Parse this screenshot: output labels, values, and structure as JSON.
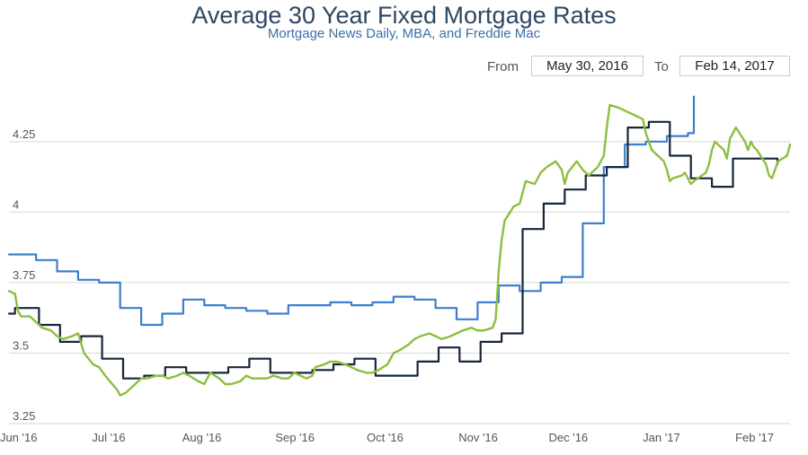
{
  "title": "Average 30 Year Fixed Mortgage Rates",
  "subtitle": "Mortgage News Daily, MBA, and Freddie Mac",
  "range_selector": {
    "from_label": "From",
    "from_value": "May 30, 2016",
    "to_label": "To",
    "to_value": "Feb 14, 2017"
  },
  "colors": {
    "mortgage_news_daily": "#8cbf3f",
    "mba": "#3d7fcc",
    "freddie_mac": "#16263a",
    "grid": "#d8d8d8",
    "title": "#2e4663",
    "subtitle": "#3d6fa8"
  },
  "chart_data": {
    "type": "line",
    "title": "Average 30 Year Fixed Mortgage Rates",
    "subtitle": "Mortgage News Daily, MBA, and Freddie Mac",
    "xlabel": "",
    "ylabel": "",
    "ylim": [
      3.25,
      4.45
    ],
    "xlim": [
      "2016-05-30",
      "2017-02-14"
    ],
    "y_ticks": [
      {
        "value": 3.25,
        "label": "3.25"
      },
      {
        "value": 3.5,
        "label": "3.5"
      },
      {
        "value": 3.75,
        "label": "3.75"
      },
      {
        "value": 4,
        "label": "4"
      },
      {
        "value": 4.25,
        "label": "4.25"
      }
    ],
    "x_ticks": [
      {
        "date": "2016-06-01",
        "label": "Jun '16"
      },
      {
        "date": "2016-07-01",
        "label": "Jul '16"
      },
      {
        "date": "2016-08-01",
        "label": "Aug '16"
      },
      {
        "date": "2016-09-01",
        "label": "Sep '16"
      },
      {
        "date": "2016-10-01",
        "label": "Oct '16"
      },
      {
        "date": "2016-11-01",
        "label": "Nov '16"
      },
      {
        "date": "2016-12-01",
        "label": "Dec '16"
      },
      {
        "date": "2017-01-01",
        "label": "Jan '17"
      },
      {
        "date": "2017-02-01",
        "label": "Feb '17"
      }
    ],
    "grid": true,
    "legend": "none",
    "series": [
      {
        "step": true,
        "color": "#3d7fcc",
        "points": [
          [
            "2016-05-30",
            3.85
          ],
          [
            "2016-06-08",
            3.83
          ],
          [
            "2016-06-15",
            3.79
          ],
          [
            "2016-06-22",
            3.76
          ],
          [
            "2016-06-29",
            3.75
          ],
          [
            "2016-07-06",
            3.66
          ],
          [
            "2016-07-13",
            3.6
          ],
          [
            "2016-07-20",
            3.64
          ],
          [
            "2016-07-27",
            3.69
          ],
          [
            "2016-08-03",
            3.67
          ],
          [
            "2016-08-10",
            3.66
          ],
          [
            "2016-08-17",
            3.65
          ],
          [
            "2016-08-24",
            3.64
          ],
          [
            "2016-08-31",
            3.67
          ],
          [
            "2016-09-07",
            3.67
          ],
          [
            "2016-09-14",
            3.68
          ],
          [
            "2016-09-21",
            3.67
          ],
          [
            "2016-09-28",
            3.68
          ],
          [
            "2016-10-05",
            3.7
          ],
          [
            "2016-10-12",
            3.69
          ],
          [
            "2016-10-19",
            3.66
          ],
          [
            "2016-10-26",
            3.62
          ],
          [
            "2016-11-02",
            3.68
          ],
          [
            "2016-11-09",
            3.74
          ],
          [
            "2016-11-16",
            3.72
          ],
          [
            "2016-11-23",
            3.75
          ],
          [
            "2016-11-30",
            3.77
          ],
          [
            "2016-12-07",
            3.96
          ],
          [
            "2016-12-14",
            4.16
          ],
          [
            "2016-12-21",
            4.24
          ],
          [
            "2016-12-28",
            4.25
          ],
          [
            "2017-01-04",
            4.27
          ],
          [
            "2017-01-11",
            4.28
          ],
          [
            "2017-01-13",
            4.41
          ]
        ]
      },
      {
        "step": true,
        "color": "#16263a",
        "points": [
          [
            "2016-05-30",
            3.64
          ],
          [
            "2016-06-01",
            3.66
          ],
          [
            "2016-06-09",
            3.6
          ],
          [
            "2016-06-16",
            3.54
          ],
          [
            "2016-06-23",
            3.56
          ],
          [
            "2016-06-30",
            3.48
          ],
          [
            "2016-07-07",
            3.41
          ],
          [
            "2016-07-14",
            3.42
          ],
          [
            "2016-07-21",
            3.45
          ],
          [
            "2016-07-28",
            3.43
          ],
          [
            "2016-08-04",
            3.43
          ],
          [
            "2016-08-11",
            3.45
          ],
          [
            "2016-08-18",
            3.48
          ],
          [
            "2016-08-25",
            3.43
          ],
          [
            "2016-09-01",
            3.43
          ],
          [
            "2016-09-08",
            3.44
          ],
          [
            "2016-09-15",
            3.46
          ],
          [
            "2016-09-22",
            3.48
          ],
          [
            "2016-09-29",
            3.42
          ],
          [
            "2016-10-06",
            3.42
          ],
          [
            "2016-10-13",
            3.47
          ],
          [
            "2016-10-20",
            3.52
          ],
          [
            "2016-10-27",
            3.47
          ],
          [
            "2016-11-03",
            3.54
          ],
          [
            "2016-11-10",
            3.57
          ],
          [
            "2016-11-17",
            3.94
          ],
          [
            "2016-11-24",
            4.03
          ],
          [
            "2016-12-01",
            4.08
          ],
          [
            "2016-12-08",
            4.13
          ],
          [
            "2016-12-15",
            4.16
          ],
          [
            "2016-12-22",
            4.3
          ],
          [
            "2016-12-29",
            4.32
          ],
          [
            "2017-01-05",
            4.2
          ],
          [
            "2017-01-12",
            4.12
          ],
          [
            "2017-01-19",
            4.09
          ],
          [
            "2017-01-26",
            4.19
          ],
          [
            "2017-02-02",
            4.19
          ],
          [
            "2017-02-09",
            4.19
          ]
        ]
      },
      {
        "step": false,
        "color": "#8cbf3f",
        "points": [
          [
            "2016-05-30",
            3.72
          ],
          [
            "2016-06-01",
            3.71
          ],
          [
            "2016-06-02",
            3.65
          ],
          [
            "2016-06-03",
            3.63
          ],
          [
            "2016-06-06",
            3.63
          ],
          [
            "2016-06-08",
            3.61
          ],
          [
            "2016-06-10",
            3.59
          ],
          [
            "2016-06-13",
            3.58
          ],
          [
            "2016-06-15",
            3.56
          ],
          [
            "2016-06-17",
            3.55
          ],
          [
            "2016-06-20",
            3.56
          ],
          [
            "2016-06-22",
            3.57
          ],
          [
            "2016-06-24",
            3.5
          ],
          [
            "2016-06-27",
            3.46
          ],
          [
            "2016-06-29",
            3.45
          ],
          [
            "2016-07-01",
            3.42
          ],
          [
            "2016-07-05",
            3.37
          ],
          [
            "2016-07-06",
            3.35
          ],
          [
            "2016-07-08",
            3.36
          ],
          [
            "2016-07-11",
            3.39
          ],
          [
            "2016-07-13",
            3.41
          ],
          [
            "2016-07-15",
            3.41
          ],
          [
            "2016-07-18",
            3.42
          ],
          [
            "2016-07-20",
            3.42
          ],
          [
            "2016-07-22",
            3.41
          ],
          [
            "2016-07-25",
            3.42
          ],
          [
            "2016-07-27",
            3.43
          ],
          [
            "2016-07-29",
            3.42
          ],
          [
            "2016-08-01",
            3.4
          ],
          [
            "2016-08-03",
            3.39
          ],
          [
            "2016-08-05",
            3.43
          ],
          [
            "2016-08-08",
            3.41
          ],
          [
            "2016-08-10",
            3.39
          ],
          [
            "2016-08-12",
            3.39
          ],
          [
            "2016-08-15",
            3.4
          ],
          [
            "2016-08-17",
            3.42
          ],
          [
            "2016-08-19",
            3.41
          ],
          [
            "2016-08-22",
            3.41
          ],
          [
            "2016-08-24",
            3.41
          ],
          [
            "2016-08-26",
            3.42
          ],
          [
            "2016-08-29",
            3.41
          ],
          [
            "2016-08-31",
            3.41
          ],
          [
            "2016-09-02",
            3.43
          ],
          [
            "2016-09-06",
            3.41
          ],
          [
            "2016-09-08",
            3.42
          ],
          [
            "2016-09-09",
            3.45
          ],
          [
            "2016-09-12",
            3.46
          ],
          [
            "2016-09-14",
            3.47
          ],
          [
            "2016-09-16",
            3.47
          ],
          [
            "2016-09-19",
            3.46
          ],
          [
            "2016-09-21",
            3.45
          ],
          [
            "2016-09-23",
            3.44
          ],
          [
            "2016-09-26",
            3.43
          ],
          [
            "2016-09-28",
            3.43
          ],
          [
            "2016-09-30",
            3.44
          ],
          [
            "2016-10-03",
            3.46
          ],
          [
            "2016-10-05",
            3.5
          ],
          [
            "2016-10-07",
            3.51
          ],
          [
            "2016-10-10",
            3.53
          ],
          [
            "2016-10-12",
            3.55
          ],
          [
            "2016-10-14",
            3.56
          ],
          [
            "2016-10-17",
            3.57
          ],
          [
            "2016-10-19",
            3.56
          ],
          [
            "2016-10-21",
            3.55
          ],
          [
            "2016-10-24",
            3.56
          ],
          [
            "2016-10-26",
            3.57
          ],
          [
            "2016-10-28",
            3.58
          ],
          [
            "2016-10-31",
            3.59
          ],
          [
            "2016-11-02",
            3.58
          ],
          [
            "2016-11-04",
            3.58
          ],
          [
            "2016-11-07",
            3.59
          ],
          [
            "2016-11-08",
            3.62
          ],
          [
            "2016-11-09",
            3.79
          ],
          [
            "2016-11-10",
            3.9
          ],
          [
            "2016-11-11",
            3.97
          ],
          [
            "2016-11-14",
            4.02
          ],
          [
            "2016-11-16",
            4.03
          ],
          [
            "2016-11-18",
            4.11
          ],
          [
            "2016-11-21",
            4.1
          ],
          [
            "2016-11-23",
            4.14
          ],
          [
            "2016-11-25",
            4.16
          ],
          [
            "2016-11-28",
            4.18
          ],
          [
            "2016-11-30",
            4.15
          ],
          [
            "2016-12-01",
            4.1
          ],
          [
            "2016-12-02",
            4.14
          ],
          [
            "2016-12-05",
            4.18
          ],
          [
            "2016-12-07",
            4.15
          ],
          [
            "2016-12-09",
            4.13
          ],
          [
            "2016-12-12",
            4.16
          ],
          [
            "2016-12-14",
            4.2
          ],
          [
            "2016-12-15",
            4.3
          ],
          [
            "2016-12-16",
            4.38
          ],
          [
            "2016-12-19",
            4.37
          ],
          [
            "2016-12-21",
            4.36
          ],
          [
            "2016-12-23",
            4.35
          ],
          [
            "2016-12-27",
            4.33
          ],
          [
            "2016-12-28",
            4.28
          ],
          [
            "2016-12-29",
            4.25
          ],
          [
            "2016-12-30",
            4.22
          ],
          [
            "2017-01-03",
            4.18
          ],
          [
            "2017-01-04",
            4.15
          ],
          [
            "2017-01-05",
            4.11
          ],
          [
            "2017-01-06",
            4.12
          ],
          [
            "2017-01-09",
            4.13
          ],
          [
            "2017-01-10",
            4.14
          ],
          [
            "2017-01-11",
            4.12
          ],
          [
            "2017-01-12",
            4.1
          ],
          [
            "2017-01-13",
            4.11
          ],
          [
            "2017-01-17",
            4.14
          ],
          [
            "2017-01-18",
            4.17
          ],
          [
            "2017-01-19",
            4.22
          ],
          [
            "2017-01-20",
            4.25
          ],
          [
            "2017-01-23",
            4.22
          ],
          [
            "2017-01-24",
            4.19
          ],
          [
            "2017-01-25",
            4.26
          ],
          [
            "2017-01-26",
            4.28
          ],
          [
            "2017-01-27",
            4.3
          ],
          [
            "2017-01-30",
            4.25
          ],
          [
            "2017-01-31",
            4.22
          ],
          [
            "2017-02-01",
            4.25
          ],
          [
            "2017-02-02",
            4.23
          ],
          [
            "2017-02-03",
            4.22
          ],
          [
            "2017-02-06",
            4.17
          ],
          [
            "2017-02-07",
            4.13
          ],
          [
            "2017-02-08",
            4.12
          ],
          [
            "2017-02-09",
            4.15
          ],
          [
            "2017-02-10",
            4.18
          ],
          [
            "2017-02-13",
            4.2
          ],
          [
            "2017-02-14",
            4.24
          ]
        ]
      }
    ]
  }
}
